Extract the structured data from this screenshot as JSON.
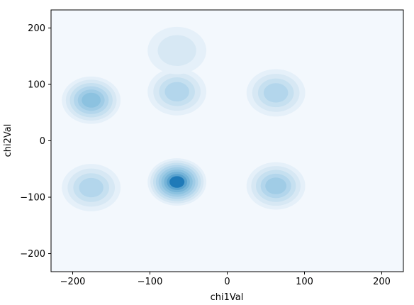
{
  "chart_data": {
    "type": "kde-contour",
    "title": "",
    "xlabel": "chi1Val",
    "ylabel": "chi2Val",
    "xlim": [
      -228,
      228
    ],
    "ylim": [
      -232,
      232
    ],
    "xticks": [
      -200,
      -100,
      0,
      100,
      200
    ],
    "yticks": [
      -200,
      -100,
      0,
      100,
      200
    ],
    "xtick_labels": [
      "−200",
      "−100",
      "0",
      "100",
      "200"
    ],
    "ytick_labels": [
      "−200",
      "−100",
      "0",
      "100",
      "200"
    ],
    "grid": false,
    "colormap": [
      "#f3f8fd",
      "#e5f0f9",
      "#d7e8f4",
      "#c6e0f0",
      "#b3d6ec",
      "#a0cce6",
      "#8cc2e0",
      "#76b4d8",
      "#5aa3cf",
      "#1f7ab8"
    ],
    "density_peaks": [
      {
        "x": -176,
        "y": 72,
        "level": 6
      },
      {
        "x": -176,
        "y": -83,
        "level": 4
      },
      {
        "x": -65,
        "y": 87,
        "level": 4
      },
      {
        "x": -65,
        "y": 160,
        "level": 2
      },
      {
        "x": -65,
        "y": -73,
        "level": 9
      },
      {
        "x": 63,
        "y": 85,
        "level": 4
      },
      {
        "x": 63,
        "y": -80,
        "level": 5
      }
    ]
  }
}
